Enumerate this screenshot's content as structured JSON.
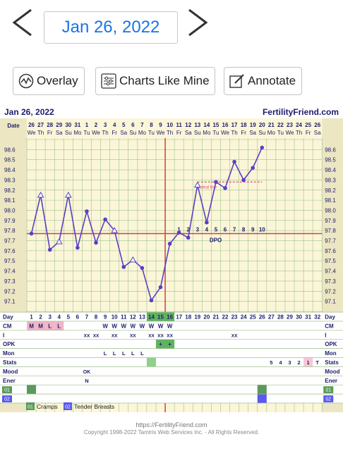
{
  "nav": {
    "date": "Jan 26, 2022"
  },
  "toolbar": {
    "overlay": "Overlay",
    "charts_like_mine": "Charts Like Mine",
    "annotate": "Annotate"
  },
  "header": {
    "date": "Jan 26, 2022",
    "site": "FertilityFriend.com"
  },
  "colors": {
    "link": "#1a73e8",
    "navy": "#1d1d6b",
    "line": "#5b3fc4",
    "coverline": "#d04040",
    "chart_bg": "#fbf6d8",
    "fertile": "#5fb35f",
    "sticky": "#f2b4c8"
  },
  "chart_data": {
    "type": "line",
    "title": "",
    "xlabel": "Day",
    "ylabel": "",
    "ylim": [
      97.0,
      98.7
    ],
    "date_row_label": "Date",
    "dates": [
      "26",
      "27",
      "28",
      "29",
      "30",
      "31",
      "1",
      "2",
      "3",
      "4",
      "5",
      "6",
      "7",
      "8",
      "9",
      "10",
      "11",
      "12",
      "13",
      "14",
      "15",
      "16",
      "17",
      "18",
      "19",
      "20",
      "21",
      "22",
      "23",
      "24",
      "25",
      "26"
    ],
    "weekdays": [
      "We",
      "Th",
      "Fr",
      "Sa",
      "Su",
      "Mo",
      "Tu",
      "We",
      "Th",
      "Fr",
      "Sa",
      "Su",
      "Mo",
      "Tu",
      "We",
      "Th",
      "Fr",
      "Sa",
      "Su",
      "Mo",
      "Tu",
      "We",
      "Th",
      "Fr",
      "Sa",
      "Su",
      "Mo",
      "Tu",
      "We",
      "Th",
      "Fr",
      "Sa"
    ],
    "cycle_days": [
      "1",
      "2",
      "3",
      "4",
      "5",
      "6",
      "7",
      "8",
      "9",
      "10",
      "11",
      "12",
      "13",
      "14",
      "15",
      "16",
      "17",
      "18",
      "19",
      "20",
      "21",
      "22",
      "23",
      "24",
      "25",
      "26",
      "27",
      "28",
      "29",
      "30",
      "31",
      "32"
    ],
    "y_ticks": [
      "98.6",
      "98.5",
      "98.4",
      "98.3",
      "98.2",
      "98.1",
      "98.0",
      "97.9",
      "97.8",
      "97.7",
      "97.6",
      "97.5",
      "97.4",
      "97.3",
      "97.2",
      "97.1"
    ],
    "temps": [
      97.77,
      98.15,
      97.61,
      97.69,
      98.15,
      97.63,
      97.99,
      97.68,
      97.91,
      97.8,
      97.44,
      97.51,
      97.43,
      97.11,
      97.24,
      97.67,
      97.78,
      97.73,
      98.25,
      97.88,
      98.28,
      98.22,
      98.48,
      98.3,
      98.42,
      98.62
    ],
    "open_points": [
      1,
      3,
      4,
      9,
      11,
      18
    ],
    "coverline": 97.77,
    "coverline_label": "DPO",
    "ovulation_day": 15,
    "dpo_labels": [
      "1",
      "2",
      "3",
      "4",
      "5",
      "6",
      "7",
      "8",
      "9",
      "10"
    ],
    "dpo_start_day": 16,
    "dashed_line": {
      "value": 98.28,
      "from_day": 18,
      "to_day": 25,
      "label": "luteal line"
    },
    "row_labels": [
      "Day",
      "CM",
      "I",
      "OPK",
      "Mon",
      "Stats",
      "Mood",
      "Ener",
      "01",
      "02"
    ],
    "cm": [
      "M",
      "M",
      "L",
      "L",
      "",
      "",
      "",
      "",
      "W",
      "W",
      "W",
      "W",
      "W",
      "W",
      "W",
      "W"
    ],
    "intercourse": {
      "6": "XX",
      "7": "XX",
      "9": "XX",
      "11": "XX",
      "13": "XX",
      "14": "XX",
      "15": "XX",
      "22": "XX"
    },
    "opk": {
      "14": "+",
      "15": "+"
    },
    "mon": {
      "8": "L",
      "9": "L",
      "10": "L",
      "11": "L",
      "12": "L"
    },
    "stats": {
      "26": "5",
      "27": "4",
      "28": "3",
      "29": "2",
      "30": "1",
      "31": "T"
    },
    "mood": {
      "6": "OK"
    },
    "energy": {
      "6": "N"
    },
    "symptom_01_days": [
      0,
      25
    ],
    "symptom_02_days": [
      25
    ],
    "legend": [
      {
        "code": "01",
        "name": "Cramps",
        "color": "#5a9a5a"
      },
      {
        "code": "02",
        "name": "Tender Breasts",
        "color": "#5a5aee"
      }
    ]
  },
  "footer": {
    "url": "https://FertilityFriend.com",
    "copyright": "Copyright 1998-2022 Tamtris Web Services Inc. - All Rights Reserved."
  }
}
